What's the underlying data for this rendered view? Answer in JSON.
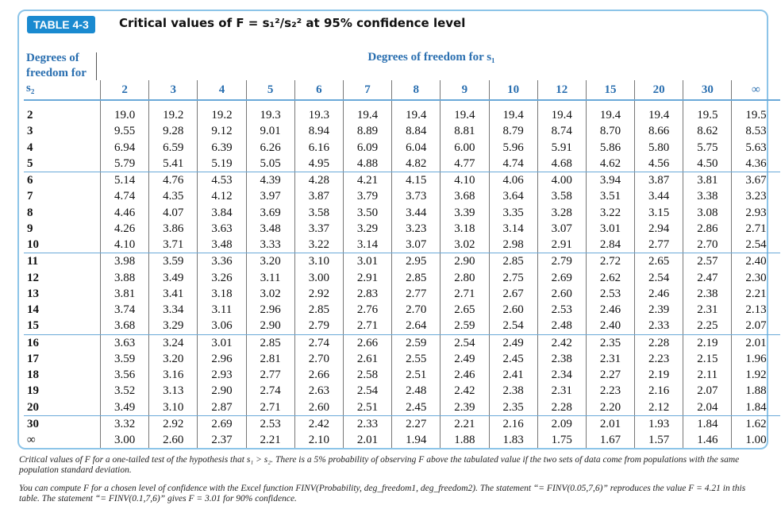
{
  "header": {
    "badge": "TABLE 4-3",
    "title": "Critical values of F = s₁²/s₂² at 95% confidence level"
  },
  "table": {
    "corner_label": "Degrees of freedom for s₂",
    "column_group_label": "Degrees of freedom for s₁",
    "columns": [
      "2",
      "3",
      "4",
      "5",
      "6",
      "7",
      "8",
      "9",
      "10",
      "12",
      "15",
      "20",
      "30",
      "∞"
    ],
    "row_labels": [
      "2",
      "3",
      "4",
      "5",
      "6",
      "7",
      "8",
      "9",
      "10",
      "11",
      "12",
      "13",
      "14",
      "15",
      "16",
      "17",
      "18",
      "19",
      "20",
      "30",
      "∞"
    ],
    "rows": [
      [
        "19.0",
        "19.2",
        "19.2",
        "19.3",
        "19.3",
        "19.4",
        "19.4",
        "19.4",
        "19.4",
        "19.4",
        "19.4",
        "19.4",
        "19.5",
        "19.5"
      ],
      [
        "9.55",
        "9.28",
        "9.12",
        "9.01",
        "8.94",
        "8.89",
        "8.84",
        "8.81",
        "8.79",
        "8.74",
        "8.70",
        "8.66",
        "8.62",
        "8.53"
      ],
      [
        "6.94",
        "6.59",
        "6.39",
        "6.26",
        "6.16",
        "6.09",
        "6.04",
        "6.00",
        "5.96",
        "5.91",
        "5.86",
        "5.80",
        "5.75",
        "5.63"
      ],
      [
        "5.79",
        "5.41",
        "5.19",
        "5.05",
        "4.95",
        "4.88",
        "4.82",
        "4.77",
        "4.74",
        "4.68",
        "4.62",
        "4.56",
        "4.50",
        "4.36"
      ],
      [
        "5.14",
        "4.76",
        "4.53",
        "4.39",
        "4.28",
        "4.21",
        "4.15",
        "4.10",
        "4.06",
        "4.00",
        "3.94",
        "3.87",
        "3.81",
        "3.67"
      ],
      [
        "4.74",
        "4.35",
        "4.12",
        "3.97",
        "3.87",
        "3.79",
        "3.73",
        "3.68",
        "3.64",
        "3.58",
        "3.51",
        "3.44",
        "3.38",
        "3.23"
      ],
      [
        "4.46",
        "4.07",
        "3.84",
        "3.69",
        "3.58",
        "3.50",
        "3.44",
        "3.39",
        "3.35",
        "3.28",
        "3.22",
        "3.15",
        "3.08",
        "2.93"
      ],
      [
        "4.26",
        "3.86",
        "3.63",
        "3.48",
        "3.37",
        "3.29",
        "3.23",
        "3.18",
        "3.14",
        "3.07",
        "3.01",
        "2.94",
        "2.86",
        "2.71"
      ],
      [
        "4.10",
        "3.71",
        "3.48",
        "3.33",
        "3.22",
        "3.14",
        "3.07",
        "3.02",
        "2.98",
        "2.91",
        "2.84",
        "2.77",
        "2.70",
        "2.54"
      ],
      [
        "3.98",
        "3.59",
        "3.36",
        "3.20",
        "3.10",
        "3.01",
        "2.95",
        "2.90",
        "2.85",
        "2.79",
        "2.72",
        "2.65",
        "2.57",
        "2.40"
      ],
      [
        "3.88",
        "3.49",
        "3.26",
        "3.11",
        "3.00",
        "2.91",
        "2.85",
        "2.80",
        "2.75",
        "2.69",
        "2.62",
        "2.54",
        "2.47",
        "2.30"
      ],
      [
        "3.81",
        "3.41",
        "3.18",
        "3.02",
        "2.92",
        "2.83",
        "2.77",
        "2.71",
        "2.67",
        "2.60",
        "2.53",
        "2.46",
        "2.38",
        "2.21"
      ],
      [
        "3.74",
        "3.34",
        "3.11",
        "2.96",
        "2.85",
        "2.76",
        "2.70",
        "2.65",
        "2.60",
        "2.53",
        "2.46",
        "2.39",
        "2.31",
        "2.13"
      ],
      [
        "3.68",
        "3.29",
        "3.06",
        "2.90",
        "2.79",
        "2.71",
        "2.64",
        "2.59",
        "2.54",
        "2.48",
        "2.40",
        "2.33",
        "2.25",
        "2.07"
      ],
      [
        "3.63",
        "3.24",
        "3.01",
        "2.85",
        "2.74",
        "2.66",
        "2.59",
        "2.54",
        "2.49",
        "2.42",
        "2.35",
        "2.28",
        "2.19",
        "2.01"
      ],
      [
        "3.59",
        "3.20",
        "2.96",
        "2.81",
        "2.70",
        "2.61",
        "2.55",
        "2.49",
        "2.45",
        "2.38",
        "2.31",
        "2.23",
        "2.15",
        "1.96"
      ],
      [
        "3.56",
        "3.16",
        "2.93",
        "2.77",
        "2.66",
        "2.58",
        "2.51",
        "2.46",
        "2.41",
        "2.34",
        "2.27",
        "2.19",
        "2.11",
        "1.92"
      ],
      [
        "3.52",
        "3.13",
        "2.90",
        "2.74",
        "2.63",
        "2.54",
        "2.48",
        "2.42",
        "2.38",
        "2.31",
        "2.23",
        "2.16",
        "2.07",
        "1.88"
      ],
      [
        "3.49",
        "3.10",
        "2.87",
        "2.71",
        "2.60",
        "2.51",
        "2.45",
        "2.39",
        "2.35",
        "2.28",
        "2.20",
        "2.12",
        "2.04",
        "1.84"
      ],
      [
        "3.32",
        "2.92",
        "2.69",
        "2.53",
        "2.42",
        "2.33",
        "2.27",
        "2.21",
        "2.16",
        "2.09",
        "2.01",
        "1.93",
        "1.84",
        "1.62"
      ],
      [
        "3.00",
        "2.60",
        "2.37",
        "2.21",
        "2.10",
        "2.01",
        "1.94",
        "1.88",
        "1.83",
        "1.75",
        "1.67",
        "1.57",
        "1.46",
        "1.00"
      ]
    ]
  },
  "notes": [
    "Critical values of F for a one-tailed test of the hypothesis that s₁ > s₂. There is a 5% probability of observing F above the tabulated value if the two sets of data come from populations with the same population standard deviation.",
    "You can compute F for a chosen level of confidence with the Excel function FINV(Probability, deg_freedom1, deg_freedom2). The statement “= FINV(0.05,7,6)” reproduces the value F = 4.21 in this table. The statement “= FINV(0.1,7,6)” gives F = 3.01 for 90% confidence."
  ]
}
